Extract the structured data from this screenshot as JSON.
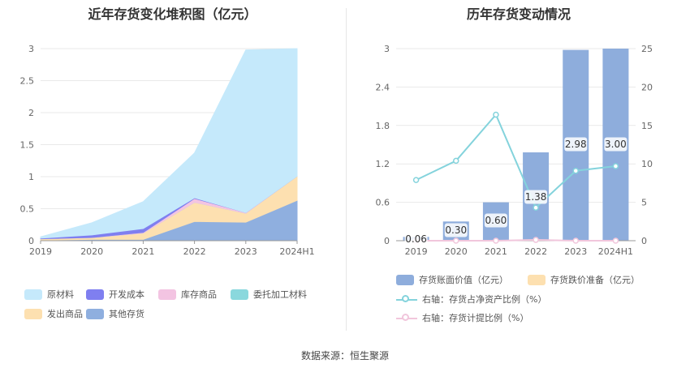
{
  "left_title": "近年存货变化堆积图（亿元）",
  "right_title": "历年存货变动情况",
  "source": "数据来源：恒生聚源",
  "chart_data": [
    {
      "type": "area",
      "title": "近年存货变化堆积图（亿元）",
      "categories": [
        "2019",
        "2020",
        "2021",
        "2022",
        "2023",
        "2024H1"
      ],
      "ylim": [
        0,
        3
      ],
      "yticks": [
        "0",
        "0.5",
        "1",
        "1.5",
        "2",
        "2.5",
        "3"
      ],
      "stacked": true,
      "grid": true,
      "legend_position": "bottom",
      "series": [
        {
          "name": "其他存货",
          "color": "#8fafdf",
          "values": [
            0.01,
            0.02,
            0.02,
            0.3,
            0.29,
            0.63
          ]
        },
        {
          "name": "发出商品",
          "color": "#fde0b0",
          "values": [
            0.02,
            0.03,
            0.1,
            0.3,
            0.14,
            0.38
          ]
        },
        {
          "name": "委托加工材料",
          "color": "#8ad8dd",
          "values": [
            0.0,
            0.0,
            0.0,
            0.0,
            0.0,
            0.0
          ]
        },
        {
          "name": "库存商品",
          "color": "#f3c4e2",
          "values": [
            0.0,
            0.0,
            0.01,
            0.06,
            0.01,
            0.0
          ]
        },
        {
          "name": "开发成本",
          "color": "#7f7ff0",
          "values": [
            0.01,
            0.04,
            0.06,
            0.01,
            0.0,
            0.0
          ]
        },
        {
          "name": "原材料",
          "color": "#c5e9fb",
          "values": [
            0.02,
            0.19,
            0.42,
            0.7,
            2.54,
            1.99
          ]
        }
      ],
      "legend": [
        {
          "name": "原材料",
          "color": "#c5e9fb"
        },
        {
          "name": "开发成本",
          "color": "#7f7ff0"
        },
        {
          "name": "库存商品",
          "color": "#f3c4e2"
        },
        {
          "name": "委托加工材料",
          "color": "#8ad8dd"
        },
        {
          "name": "发出商品",
          "color": "#fde0b0"
        },
        {
          "name": "其他存货",
          "color": "#8fafdf"
        }
      ]
    },
    {
      "type": "bar",
      "title": "历年存货变动情况",
      "categories": [
        "2019",
        "2020",
        "2021",
        "2022",
        "2023",
        "2024H1"
      ],
      "ylim": [
        0,
        3
      ],
      "yticks": [
        "0",
        "0.6",
        "1.2",
        "1.8",
        "2.4",
        "3"
      ],
      "y2lim": [
        0,
        25
      ],
      "y2ticks": [
        "0",
        "5",
        "10",
        "15",
        "20",
        "25"
      ],
      "grid": true,
      "legend_position": "bottom",
      "bars": [
        {
          "name": "存货账面价值（亿元）",
          "color": "#8eaddc",
          "values": [
            0.06,
            0.3,
            0.6,
            1.38,
            2.98,
            3.0
          ],
          "labels": [
            "0.06",
            "0.30",
            "0.60",
            "1.38",
            "2.98",
            "3.00"
          ]
        },
        {
          "name": "存货跌价准备（亿元）",
          "color": "#fde0b0",
          "values": [
            0,
            0,
            0,
            0.02,
            0.0,
            0.0
          ]
        }
      ],
      "lines": [
        {
          "name": "右轴：存货占净资产比例（%）",
          "color": "#84d3dc",
          "axis": "right",
          "values": [
            7.9,
            10.4,
            16.4,
            4.3,
            9.1,
            9.7
          ]
        },
        {
          "name": "右轴：存货计提比例（%）",
          "color": "#f1c6dc",
          "axis": "right",
          "values": [
            0,
            0,
            0,
            0.1,
            0,
            0
          ]
        }
      ]
    }
  ]
}
